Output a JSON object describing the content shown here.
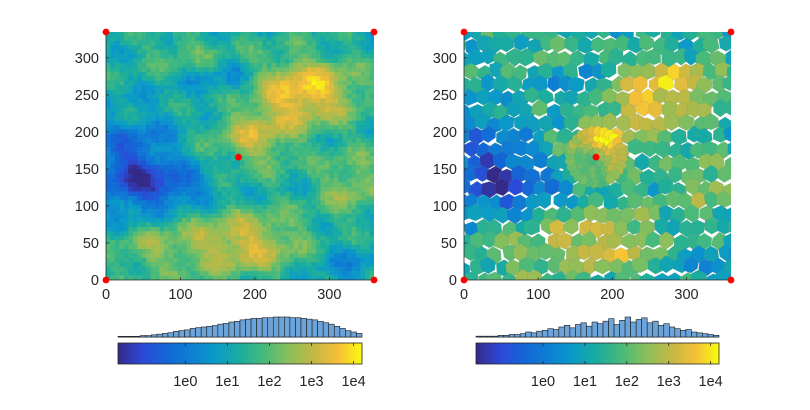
{
  "chart_data": [
    {
      "type": "heatmap",
      "panel": "left",
      "grid": "cartesian",
      "xlim": [
        0,
        360
      ],
      "ylim": [
        0,
        335
      ],
      "xticks": [
        0,
        100,
        200,
        300
      ],
      "yticks": [
        0,
        50,
        100,
        150,
        200,
        250,
        300
      ],
      "xtick_labels": [
        "0",
        "100",
        "200",
        "300"
      ],
      "ytick_labels": [
        "0",
        "50",
        "100",
        "150",
        "200",
        "250",
        "300"
      ],
      "colormap": "parula",
      "grid_lines": false,
      "markers": {
        "color": "#ff0000",
        "points": [
          [
            0,
            335
          ],
          [
            360,
            335
          ],
          [
            0,
            0
          ],
          [
            360,
            0
          ],
          [
            178,
            166
          ]
        ]
      },
      "histogram_counts": [
        1,
        1,
        1,
        1,
        2,
        2,
        3,
        4,
        5,
        6,
        8,
        9,
        10,
        12,
        13,
        14,
        15,
        16,
        18,
        19,
        21,
        22,
        24,
        25,
        26,
        26,
        27,
        27,
        28,
        28,
        28,
        27,
        27,
        26,
        25,
        24,
        22,
        20,
        18,
        15,
        12,
        9,
        7,
        5
      ],
      "colorbar": {
        "tick_labels": [
          "1e0",
          "1e1",
          "1e2",
          "1e3",
          "1e4"
        ],
        "tick_values_log10": [
          0,
          1,
          2,
          3,
          4
        ],
        "range_log10": [
          -1.6,
          4.2
        ]
      }
    },
    {
      "type": "heatmap",
      "panel": "right",
      "grid": "voronoi",
      "xlim": [
        0,
        360
      ],
      "ylim": [
        0,
        335
      ],
      "xticks": [
        0,
        100,
        200,
        300
      ],
      "yticks": [
        0,
        50,
        100,
        150,
        200,
        250,
        300
      ],
      "xtick_labels": [
        "0",
        "100",
        "200",
        "300"
      ],
      "ytick_labels": [
        "0",
        "50",
        "100",
        "150",
        "200",
        "250",
        "300"
      ],
      "colormap": "parula",
      "grid_lines": false,
      "markers": {
        "color": "#ff0000",
        "points": [
          [
            0,
            335
          ],
          [
            360,
            335
          ],
          [
            0,
            0
          ],
          [
            360,
            0
          ],
          [
            178,
            166
          ]
        ]
      },
      "histogram_counts": [
        1,
        1,
        1,
        1,
        2,
        2,
        3,
        3,
        4,
        6,
        5,
        7,
        8,
        10,
        9,
        12,
        14,
        11,
        15,
        17,
        13,
        18,
        16,
        19,
        22,
        15,
        20,
        24,
        18,
        21,
        23,
        17,
        19,
        14,
        16,
        12,
        10,
        8,
        9,
        6,
        5,
        4,
        3,
        2
      ],
      "colorbar": {
        "tick_labels": [
          "1e0",
          "1e1",
          "1e2",
          "1e3",
          "1e4"
        ],
        "tick_values_log10": [
          0,
          1,
          2,
          3,
          4
        ],
        "range_log10": [
          -1.6,
          4.2
        ]
      }
    }
  ]
}
